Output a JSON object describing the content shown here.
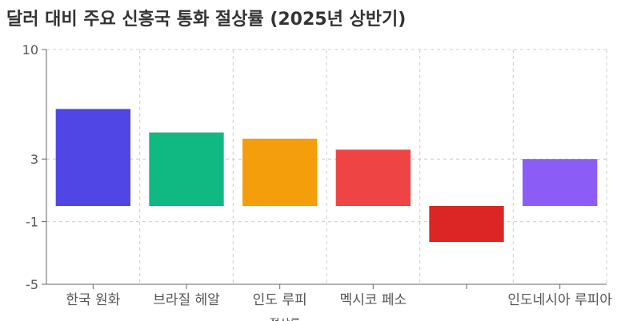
{
  "chart_data": {
    "type": "bar",
    "title": "달러 대비 주요 신흥국 통화 절상률 (2025년 상반기)",
    "categories": [
      "한국 원화",
      "브라질 헤알",
      "인도 루피",
      "멕시코 페소",
      "",
      "인도네시아 루피아"
    ],
    "values": [
      6.2,
      4.7,
      4.3,
      3.6,
      -2.3,
      3.0
    ],
    "colors": [
      "#4F46E5",
      "#10B981",
      "#F59E0B",
      "#EF4444",
      "#DC2626",
      "#8B5CF6"
    ],
    "xlabel": "절상률",
    "ylabel": "",
    "ylim": [
      -5,
      10
    ],
    "yticks": [
      10,
      3,
      -1,
      -5
    ],
    "grid": true,
    "legend": "none"
  }
}
